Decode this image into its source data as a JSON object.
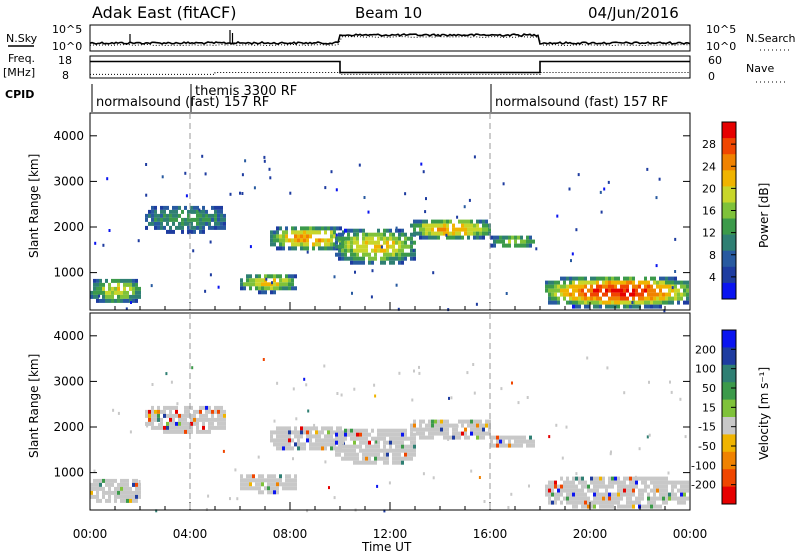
{
  "header": {
    "station": "Adak East (fitACF)",
    "beam": "Beam 10",
    "date": "04/Jun/2016"
  },
  "noise_panel": {
    "left_label": "N.Sky",
    "right_label": "N.Search",
    "left_ticks": [
      "10^5",
      "10^0"
    ],
    "right_ticks": [
      "10^5",
      "10^0"
    ]
  },
  "freq_panel": {
    "left_label_1": "Freq.",
    "left_label_2": "[MHz]",
    "right_label": "Nave",
    "left_ticks": [
      "18",
      "8"
    ],
    "right_ticks": [
      "60",
      "0"
    ],
    "freq_steps": [
      {
        "start": "00:00",
        "end": "10:00",
        "mhz": 15.5
      },
      {
        "start": "10:00",
        "end": "18:00",
        "mhz": 10.5
      },
      {
        "start": "18:00",
        "end": "24:00",
        "mhz": 15.5
      }
    ],
    "nave_steps": [
      {
        "start": "00:00",
        "end": "05:00",
        "value": 10
      },
      {
        "start": "05:00",
        "end": "10:00",
        "value": 15
      },
      {
        "start": "10:00",
        "end": "18:00",
        "value": 10
      },
      {
        "start": "18:00",
        "end": "24:00",
        "value": 15
      }
    ]
  },
  "cpid": {
    "label": "CPID",
    "segments": [
      {
        "start": "00:00",
        "end": "04:00",
        "text": "normalsound (fast) 157 RF"
      },
      {
        "start": "04:00",
        "end": "16:00",
        "text": "themis 3300 RF"
      },
      {
        "start": "16:00",
        "end": "24:00",
        "text": "normalsound (fast) 157 RF"
      }
    ]
  },
  "colors": {
    "power_scale": [
      "#0a14f0",
      "#1e3ca0",
      "#285aa0",
      "#2f7f73",
      "#3c9a4a",
      "#7fc23a",
      "#c8d62a",
      "#f0b400",
      "#f08200",
      "#f04600",
      "#e60000"
    ],
    "velocity_scale": [
      "#0a14f0",
      "#1e3ca0",
      "#2f7f73",
      "#3c9a4a",
      "#7fc23a",
      "#c8c8c8",
      "#f0b400",
      "#f08200",
      "#f04600",
      "#e60000"
    ],
    "ground_scatter": "#c8c8c8"
  },
  "chart_data": [
    {
      "type": "heatmap",
      "name_hint": "power",
      "ylabel": "Slant Range [km]",
      "colorbar_label": "Power [dB]",
      "colorbar_ticks": [
        "28",
        "24",
        "20",
        "16",
        "12",
        "8",
        "4"
      ],
      "colorbar_range": [
        0,
        30
      ],
      "ylim": [
        180,
        4500
      ],
      "y_ticks": [
        "1000",
        "2000",
        "3000",
        "4000"
      ],
      "x_ticks": [
        "00:00",
        "04:00",
        "08:00",
        "12:00",
        "16:00",
        "20:00",
        "00:00"
      ],
      "xlabel": "Time UT",
      "xlim_hours": [
        0,
        24
      ],
      "scatter_regions": [
        {
          "t0": 0.0,
          "t1": 2.0,
          "r0": 350,
          "r1": 950,
          "peak_db": 18
        },
        {
          "t0": 2.2,
          "t1": 5.4,
          "r0": 1900,
          "r1": 2550,
          "peak_db": 12
        },
        {
          "t0": 6.0,
          "t1": 8.2,
          "r0": 600,
          "r1": 1050,
          "peak_db": 20
        },
        {
          "t0": 7.2,
          "t1": 10.2,
          "r0": 1500,
          "r1": 2100,
          "peak_db": 22
        },
        {
          "t0": 9.8,
          "t1": 13.0,
          "r0": 1200,
          "r1": 2050,
          "peak_db": 20
        },
        {
          "t0": 12.8,
          "t1": 16.0,
          "r0": 1750,
          "r1": 2250,
          "peak_db": 22
        },
        {
          "t0": 16.0,
          "t1": 17.8,
          "r0": 1550,
          "r1": 1900,
          "peak_db": 16
        },
        {
          "t0": 18.2,
          "t1": 23.9,
          "r0": 250,
          "r1": 1000,
          "peak_db": 28
        }
      ]
    },
    {
      "type": "heatmap",
      "name_hint": "velocity",
      "ylabel": "Slant Range [km]",
      "colorbar_label": "Velocity [m s⁻¹]",
      "colorbar_ticks": [
        "200",
        "100",
        "50",
        "15",
        "-15",
        "-50",
        "-100",
        "-200"
      ],
      "colorbar_range": [
        -250,
        250
      ],
      "ylim": [
        180,
        4500
      ],
      "y_ticks": [
        "1000",
        "2000",
        "3000",
        "4000"
      ],
      "x_ticks": [
        "00:00",
        "04:00",
        "08:00",
        "12:00",
        "16:00",
        "20:00",
        "00:00"
      ],
      "xlabel": "Time UT",
      "xlim_hours": [
        0,
        24
      ],
      "scatter_regions": [
        {
          "t0": 0.0,
          "t1": 2.0,
          "r0": 350,
          "r1": 950,
          "velocity": 0
        },
        {
          "t0": 2.2,
          "t1": 5.4,
          "r0": 1900,
          "r1": 2550,
          "velocity": 0
        },
        {
          "t0": 6.0,
          "t1": 8.2,
          "r0": 600,
          "r1": 1050,
          "velocity": 0
        },
        {
          "t0": 7.2,
          "t1": 10.2,
          "r0": 1500,
          "r1": 2100,
          "velocity": 0
        },
        {
          "t0": 9.8,
          "t1": 13.0,
          "r0": 1200,
          "r1": 2050,
          "velocity": 0
        },
        {
          "t0": 12.8,
          "t1": 16.0,
          "r0": 1750,
          "r1": 2250,
          "velocity": 0
        },
        {
          "t0": 16.0,
          "t1": 17.8,
          "r0": 1550,
          "r1": 1900,
          "velocity": 0
        },
        {
          "t0": 18.2,
          "t1": 23.9,
          "r0": 250,
          "r1": 1000,
          "velocity": 0
        }
      ]
    }
  ]
}
